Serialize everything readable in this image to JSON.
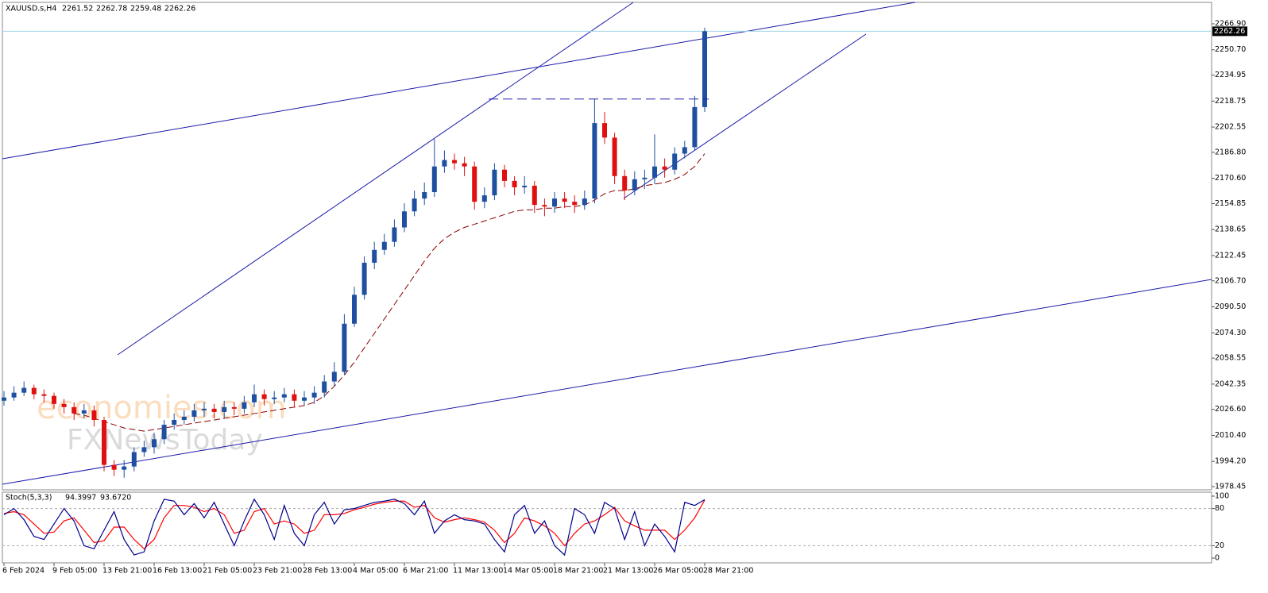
{
  "chart_data": {
    "type": "candlestick",
    "title": "XAUUSD.s,H4",
    "header_values": [
      2261.52,
      2262.78,
      2259.48,
      2262.26
    ],
    "watermark": [
      "economies.com",
      "FXNewsToday"
    ],
    "categories": [
      "6 Feb 2024",
      null,
      null,
      null,
      null,
      "9 Feb 05:00",
      null,
      null,
      null,
      null,
      "13 Feb 21:00",
      null,
      null,
      null,
      null,
      "16 Feb 13:00",
      null,
      null,
      null,
      null,
      "21 Feb 05:00",
      null,
      null,
      null,
      null,
      "23 Feb 21:00",
      null,
      null,
      null,
      null,
      "28 Feb 13:00",
      null,
      null,
      null,
      null,
      "4 Mar 05:00",
      null,
      null,
      null,
      null,
      "6 Mar 21:00",
      null,
      null,
      null,
      null,
      "11 Mar 13:00",
      null,
      null,
      null,
      null,
      "14 Mar 05:00",
      null,
      null,
      null,
      null,
      "18 Mar 21:00",
      null,
      null,
      null,
      null,
      "21 Mar 13:00",
      null,
      null,
      null,
      null,
      "26 Mar 05:00",
      null,
      null,
      null,
      null,
      "28 Mar 21:00"
    ],
    "open": [
      2032,
      2034,
      2037,
      2040,
      2036,
      2035,
      2030,
      2028,
      2024,
      2026,
      2020,
      1992,
      1989,
      1991,
      2000,
      2003,
      2008,
      2017,
      2020,
      2022,
      2026,
      2027,
      2025,
      2028,
      2027,
      2031,
      2036,
      2033,
      2034,
      2036,
      2032,
      2034,
      2037,
      2044,
      2050,
      2080,
      2098,
      2118,
      2126,
      2131,
      2140,
      2150,
      2158,
      2162,
      2178,
      2182,
      2180,
      2178,
      2156,
      2160,
      2176,
      2169,
      2165,
      2166,
      2154,
      2153,
      2158,
      2156,
      2154,
      2158,
      2205,
      2196,
      2172,
      2163,
      2170,
      2171,
      2178,
      2176,
      2186,
      2190,
      2215
    ],
    "high": [
      2038,
      2041,
      2044,
      2042,
      2039,
      2037,
      2033,
      2031,
      2030,
      2029,
      2022,
      1995,
      1995,
      2003,
      2007,
      2012,
      2020,
      2024,
      2026,
      2030,
      2031,
      2030,
      2032,
      2031,
      2035,
      2042,
      2039,
      2038,
      2040,
      2039,
      2038,
      2041,
      2048,
      2056,
      2086,
      2103,
      2122,
      2131,
      2136,
      2145,
      2155,
      2163,
      2168,
      2195,
      2188,
      2186,
      2184,
      2181,
      2165,
      2180,
      2179,
      2172,
      2172,
      2169,
      2158,
      2162,
      2162,
      2160,
      2163,
      2220,
      2212,
      2199,
      2176,
      2175,
      2176,
      2198,
      2183,
      2190,
      2194,
      2222,
      2264.5
    ],
    "low": [
      2029,
      2032,
      2035,
      2033,
      2031,
      2027,
      2024,
      2020,
      2021,
      2016,
      1988,
      1985,
      1984,
      1988,
      1997,
      1999,
      2005,
      2014,
      2017,
      2019,
      2022,
      2021,
      2021,
      2023,
      2024,
      2028,
      2029,
      2030,
      2031,
      2028,
      2029,
      2030,
      2034,
      2041,
      2048,
      2078,
      2095,
      2114,
      2123,
      2128,
      2137,
      2147,
      2154,
      2159,
      2174,
      2176,
      2172,
      2151,
      2152,
      2157,
      2165,
      2160,
      2161,
      2149,
      2147,
      2149,
      2152,
      2149,
      2151,
      2155,
      2192,
      2167,
      2157,
      2160,
      2164,
      2167,
      2171,
      2173,
      2183,
      2188,
      2212
    ],
    "close": [
      2034,
      2037,
      2040,
      2036,
      2035,
      2030,
      2028,
      2024,
      2026,
      2020,
      1992,
      1989,
      1991,
      2000,
      2003,
      2008,
      2017,
      2020,
      2022,
      2026,
      2027,
      2025,
      2028,
      2027,
      2031,
      2036,
      2033,
      2034,
      2036,
      2032,
      2034,
      2037,
      2044,
      2050,
      2080,
      2098,
      2118,
      2126,
      2131,
      2140,
      2150,
      2158,
      2162,
      2178,
      2182,
      2180,
      2178,
      2156,
      2160,
      2176,
      2169,
      2165,
      2166,
      2154,
      2153,
      2158,
      2156,
      2154,
      2158,
      2205,
      2196,
      2172,
      2163,
      2170,
      2171,
      2178,
      2176,
      2186,
      2190,
      2215,
      2262.26
    ],
    "moving_average": [
      null,
      null,
      null,
      null,
      null,
      null,
      null,
      2024,
      2023,
      2021,
      2019,
      2017,
      2015,
      2014,
      2013,
      2014,
      2015,
      2016,
      2017,
      2018,
      2019,
      2020,
      2021,
      2022,
      2023,
      2024,
      2025,
      2026,
      2027,
      2028,
      2029,
      2031,
      2035,
      2041,
      2048,
      2056,
      2065,
      2074,
      2083,
      2092,
      2101,
      2110,
      2119,
      2127,
      2133,
      2137,
      2140,
      2142,
      2144,
      2146,
      2148,
      2150,
      2151,
      2151,
      2152,
      2152,
      2153,
      2153,
      2154,
      2157,
      2161,
      2163,
      2163,
      2164,
      2166,
      2167,
      2168,
      2170,
      2173,
      2178,
      2186
    ],
    "resistance_level": 2220,
    "last_price": 2262.26,
    "up_color": "#1e4fa0",
    "down_color": "#e01010",
    "ma_color": "#8b0000",
    "ylim": [
      1976.47,
      2280.26
    ],
    "yticks": [
      {
        "value": 2266.9,
        "label": "2266.90"
      },
      {
        "value": 2250.7,
        "label": "2250.70"
      },
      {
        "value": 2234.95,
        "label": "2234.95"
      },
      {
        "value": 2218.75,
        "label": "2218.75"
      },
      {
        "value": 2202.55,
        "label": "2202.55"
      },
      {
        "value": 2186.8,
        "label": "2186.80"
      },
      {
        "value": 2170.6,
        "label": "2170.60"
      },
      {
        "value": 2154.85,
        "label": "2154.85"
      },
      {
        "value": 2138.65,
        "label": "2138.65"
      },
      {
        "value": 2122.45,
        "label": "2122.45"
      },
      {
        "value": 2106.7,
        "label": "2106.70"
      },
      {
        "value": 2090.5,
        "label": "2090.50"
      },
      {
        "value": 2074.3,
        "label": "2074.30"
      },
      {
        "value": 2058.55,
        "label": "2058.55"
      },
      {
        "value": 2042.35,
        "label": "2042.35"
      },
      {
        "value": 2026.6,
        "label": "2026.60"
      },
      {
        "value": 2010.4,
        "label": "2010.40"
      },
      {
        "value": 1994.2,
        "label": "1994.20"
      },
      {
        "value": 1978.45,
        "label": "1978.45"
      }
    ],
    "indicator": {
      "title": "Stoch(5,3,3)",
      "header_values": [
        94.3997,
        {
          "value": 93.672,
          "label": "93.6720"
        }
      ],
      "main_color": "#00008b",
      "signal_color": "#ff0000",
      "main": [
        70,
        80,
        62,
        35,
        30,
        55,
        80,
        60,
        20,
        15,
        45,
        75,
        30,
        5,
        10,
        60,
        95,
        92,
        70,
        88,
        65,
        90,
        55,
        20,
        60,
        95,
        70,
        30,
        85,
        40,
        20,
        70,
        90,
        55,
        78,
        80,
        85,
        90,
        92,
        95,
        88,
        70,
        92,
        40,
        60,
        70,
        62,
        60,
        55,
        30,
        10,
        70,
        85,
        40,
        60,
        20,
        5,
        80,
        70,
        40,
        90,
        80,
        30,
        75,
        20,
        55,
        35,
        10,
        90,
        85,
        94.3997
      ],
      "signal": [
        72,
        75,
        70,
        55,
        40,
        42,
        60,
        65,
        45,
        25,
        28,
        50,
        50,
        30,
        15,
        30,
        65,
        85,
        85,
        82,
        75,
        80,
        70,
        40,
        45,
        75,
        80,
        55,
        60,
        55,
        40,
        45,
        70,
        70,
        72,
        78,
        82,
        87,
        90,
        92,
        92,
        82,
        85,
        65,
        58,
        62,
        65,
        62,
        58,
        45,
        25,
        40,
        65,
        60,
        52,
        40,
        20,
        40,
        55,
        60,
        70,
        82,
        60,
        52,
        45,
        45,
        45,
        30,
        45,
        65,
        93.672
      ],
      "ylim": [
        0,
        100
      ],
      "yticks": [
        0,
        20,
        80,
        100
      ],
      "levels": [
        20,
        80
      ]
    }
  }
}
